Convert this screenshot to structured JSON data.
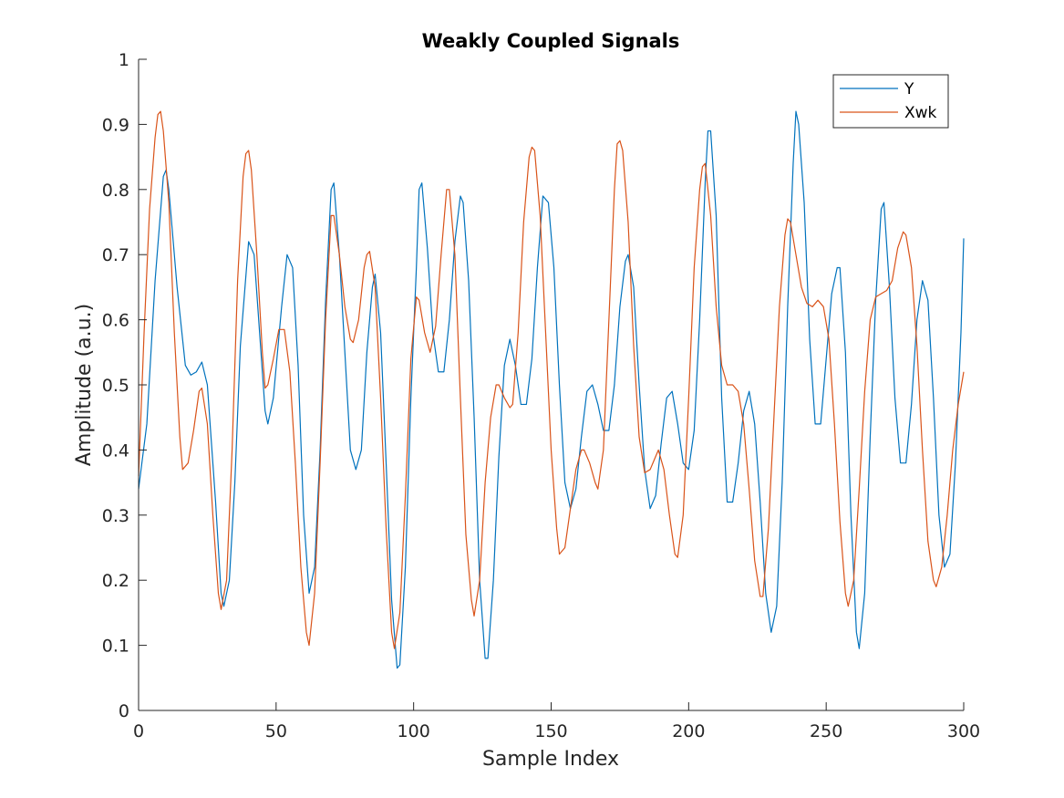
{
  "chart_data": {
    "type": "line",
    "title": "Weakly Coupled Signals",
    "xlabel": "Sample Index",
    "ylabel": "Amplitude (a.u.)",
    "xlim": [
      0,
      300
    ],
    "ylim": [
      0,
      1
    ],
    "xticks": [
      "0",
      "50",
      "100",
      "150",
      "200",
      "250",
      "300"
    ],
    "yticks": [
      "0",
      "0.1",
      "0.2",
      "0.3",
      "0.4",
      "0.5",
      "0.6",
      "0.7",
      "0.8",
      "0.9",
      "1"
    ],
    "grid": false,
    "legend_position": "top-right",
    "series": [
      {
        "name": "Y",
        "color": "#0072BD",
        "points": [
          [
            0,
            0.34
          ],
          [
            3,
            0.44
          ],
          [
            6,
            0.66
          ],
          [
            9,
            0.82
          ],
          [
            10,
            0.83
          ],
          [
            11,
            0.8
          ],
          [
            14,
            0.65
          ],
          [
            17,
            0.53
          ],
          [
            19,
            0.515
          ],
          [
            21,
            0.52
          ],
          [
            23,
            0.535
          ],
          [
            25,
            0.5
          ],
          [
            28,
            0.32
          ],
          [
            30,
            0.18
          ],
          [
            31,
            0.16
          ],
          [
            33,
            0.2
          ],
          [
            35,
            0.35
          ],
          [
            37,
            0.56
          ],
          [
            40,
            0.72
          ],
          [
            42,
            0.7
          ],
          [
            44,
            0.58
          ],
          [
            46,
            0.46
          ],
          [
            47,
            0.44
          ],
          [
            49,
            0.48
          ],
          [
            52,
            0.62
          ],
          [
            54,
            0.7
          ],
          [
            56,
            0.68
          ],
          [
            58,
            0.53
          ],
          [
            60,
            0.3
          ],
          [
            62,
            0.18
          ],
          [
            64,
            0.22
          ],
          [
            66,
            0.4
          ],
          [
            68,
            0.63
          ],
          [
            70,
            0.8
          ],
          [
            71,
            0.81
          ],
          [
            73,
            0.7
          ],
          [
            75,
            0.55
          ],
          [
            77,
            0.4
          ],
          [
            79,
            0.37
          ],
          [
            81,
            0.4
          ],
          [
            83,
            0.55
          ],
          [
            85,
            0.65
          ],
          [
            86,
            0.67
          ],
          [
            88,
            0.58
          ],
          [
            90,
            0.38
          ],
          [
            92,
            0.17
          ],
          [
            94,
            0.065
          ],
          [
            95,
            0.07
          ],
          [
            97,
            0.22
          ],
          [
            99,
            0.48
          ],
          [
            101,
            0.68
          ],
          [
            102,
            0.8
          ],
          [
            103,
            0.81
          ],
          [
            105,
            0.71
          ],
          [
            107,
            0.58
          ],
          [
            109,
            0.52
          ],
          [
            111,
            0.52
          ],
          [
            113,
            0.6
          ],
          [
            115,
            0.72
          ],
          [
            117,
            0.79
          ],
          [
            118,
            0.78
          ],
          [
            120,
            0.66
          ],
          [
            122,
            0.45
          ],
          [
            124,
            0.2
          ],
          [
            126,
            0.08
          ],
          [
            127,
            0.08
          ],
          [
            129,
            0.2
          ],
          [
            131,
            0.39
          ],
          [
            133,
            0.53
          ],
          [
            135,
            0.57
          ],
          [
            137,
            0.53
          ],
          [
            139,
            0.47
          ],
          [
            141,
            0.47
          ],
          [
            143,
            0.54
          ],
          [
            145,
            0.68
          ],
          [
            147,
            0.79
          ],
          [
            149,
            0.78
          ],
          [
            151,
            0.68
          ],
          [
            153,
            0.5
          ],
          [
            155,
            0.35
          ],
          [
            157,
            0.31
          ],
          [
            159,
            0.34
          ],
          [
            161,
            0.42
          ],
          [
            163,
            0.49
          ],
          [
            165,
            0.5
          ],
          [
            167,
            0.47
          ],
          [
            169,
            0.43
          ],
          [
            171,
            0.43
          ],
          [
            173,
            0.5
          ],
          [
            175,
            0.62
          ],
          [
            177,
            0.69
          ],
          [
            178,
            0.7
          ],
          [
            180,
            0.65
          ],
          [
            182,
            0.5
          ],
          [
            184,
            0.37
          ],
          [
            186,
            0.31
          ],
          [
            188,
            0.33
          ],
          [
            190,
            0.41
          ],
          [
            192,
            0.48
          ],
          [
            194,
            0.49
          ],
          [
            196,
            0.44
          ],
          [
            198,
            0.38
          ],
          [
            200,
            0.37
          ],
          [
            202,
            0.43
          ],
          [
            204,
            0.6
          ],
          [
            206,
            0.81
          ],
          [
            207,
            0.89
          ],
          [
            208,
            0.89
          ],
          [
            210,
            0.76
          ],
          [
            212,
            0.48
          ],
          [
            214,
            0.32
          ],
          [
            216,
            0.32
          ],
          [
            218,
            0.38
          ],
          [
            220,
            0.46
          ],
          [
            222,
            0.49
          ],
          [
            224,
            0.44
          ],
          [
            226,
            0.32
          ],
          [
            228,
            0.18
          ],
          [
            230,
            0.12
          ],
          [
            232,
            0.16
          ],
          [
            234,
            0.35
          ],
          [
            236,
            0.62
          ],
          [
            238,
            0.84
          ],
          [
            239,
            0.92
          ],
          [
            240,
            0.9
          ],
          [
            242,
            0.78
          ],
          [
            244,
            0.57
          ],
          [
            246,
            0.44
          ],
          [
            248,
            0.44
          ],
          [
            250,
            0.54
          ],
          [
            252,
            0.64
          ],
          [
            254,
            0.68
          ],
          [
            255,
            0.68
          ],
          [
            257,
            0.55
          ],
          [
            259,
            0.3
          ],
          [
            261,
            0.12
          ],
          [
            262,
            0.095
          ],
          [
            264,
            0.18
          ],
          [
            266,
            0.42
          ],
          [
            268,
            0.63
          ],
          [
            270,
            0.77
          ],
          [
            271,
            0.78
          ],
          [
            273,
            0.65
          ],
          [
            275,
            0.48
          ],
          [
            277,
            0.38
          ],
          [
            279,
            0.38
          ],
          [
            281,
            0.47
          ],
          [
            283,
            0.6
          ],
          [
            285,
            0.66
          ],
          [
            287,
            0.63
          ],
          [
            289,
            0.48
          ],
          [
            291,
            0.3
          ],
          [
            293,
            0.22
          ],
          [
            295,
            0.24
          ],
          [
            297,
            0.38
          ],
          [
            299,
            0.58
          ],
          [
            300,
            0.725
          ]
        ]
      },
      {
        "name": "Xwk",
        "color": "#D95319",
        "points": [
          [
            0,
            0.36
          ],
          [
            2,
            0.58
          ],
          [
            4,
            0.77
          ],
          [
            6,
            0.88
          ],
          [
            7,
            0.915
          ],
          [
            8,
            0.92
          ],
          [
            9,
            0.89
          ],
          [
            11,
            0.78
          ],
          [
            13,
            0.58
          ],
          [
            15,
            0.42
          ],
          [
            16,
            0.37
          ],
          [
            18,
            0.38
          ],
          [
            20,
            0.43
          ],
          [
            22,
            0.49
          ],
          [
            23,
            0.495
          ],
          [
            25,
            0.44
          ],
          [
            27,
            0.3
          ],
          [
            29,
            0.18
          ],
          [
            30,
            0.155
          ],
          [
            32,
            0.2
          ],
          [
            34,
            0.4
          ],
          [
            36,
            0.66
          ],
          [
            38,
            0.82
          ],
          [
            39,
            0.855
          ],
          [
            40,
            0.86
          ],
          [
            41,
            0.83
          ],
          [
            43,
            0.7
          ],
          [
            45,
            0.55
          ],
          [
            46,
            0.495
          ],
          [
            47,
            0.5
          ],
          [
            49,
            0.54
          ],
          [
            51,
            0.585
          ],
          [
            53,
            0.585
          ],
          [
            55,
            0.52
          ],
          [
            57,
            0.38
          ],
          [
            59,
            0.22
          ],
          [
            61,
            0.12
          ],
          [
            62,
            0.1
          ],
          [
            64,
            0.18
          ],
          [
            66,
            0.38
          ],
          [
            68,
            0.6
          ],
          [
            70,
            0.76
          ],
          [
            71,
            0.76
          ],
          [
            73,
            0.7
          ],
          [
            75,
            0.62
          ],
          [
            77,
            0.57
          ],
          [
            78,
            0.565
          ],
          [
            80,
            0.6
          ],
          [
            82,
            0.68
          ],
          [
            83,
            0.7
          ],
          [
            84,
            0.705
          ],
          [
            86,
            0.65
          ],
          [
            88,
            0.48
          ],
          [
            90,
            0.28
          ],
          [
            92,
            0.12
          ],
          [
            93,
            0.095
          ],
          [
            95,
            0.15
          ],
          [
            97,
            0.33
          ],
          [
            99,
            0.54
          ],
          [
            101,
            0.635
          ],
          [
            102,
            0.63
          ],
          [
            104,
            0.58
          ],
          [
            106,
            0.55
          ],
          [
            108,
            0.59
          ],
          [
            110,
            0.7
          ],
          [
            112,
            0.8
          ],
          [
            113,
            0.8
          ],
          [
            115,
            0.7
          ],
          [
            117,
            0.48
          ],
          [
            119,
            0.27
          ],
          [
            121,
            0.17
          ],
          [
            122,
            0.145
          ],
          [
            124,
            0.2
          ],
          [
            126,
            0.35
          ],
          [
            128,
            0.45
          ],
          [
            130,
            0.5
          ],
          [
            131,
            0.5
          ],
          [
            133,
            0.48
          ],
          [
            135,
            0.465
          ],
          [
            136,
            0.47
          ],
          [
            138,
            0.58
          ],
          [
            140,
            0.75
          ],
          [
            142,
            0.85
          ],
          [
            143,
            0.865
          ],
          [
            144,
            0.86
          ],
          [
            146,
            0.76
          ],
          [
            148,
            0.58
          ],
          [
            150,
            0.4
          ],
          [
            152,
            0.28
          ],
          [
            153,
            0.24
          ],
          [
            155,
            0.25
          ],
          [
            157,
            0.31
          ],
          [
            159,
            0.37
          ],
          [
            161,
            0.4
          ],
          [
            162,
            0.4
          ],
          [
            164,
            0.38
          ],
          [
            166,
            0.35
          ],
          [
            167,
            0.34
          ],
          [
            169,
            0.4
          ],
          [
            171,
            0.6
          ],
          [
            173,
            0.8
          ],
          [
            174,
            0.87
          ],
          [
            175,
            0.875
          ],
          [
            176,
            0.86
          ],
          [
            178,
            0.75
          ],
          [
            180,
            0.56
          ],
          [
            182,
            0.42
          ],
          [
            184,
            0.365
          ],
          [
            186,
            0.37
          ],
          [
            188,
            0.39
          ],
          [
            189,
            0.4
          ],
          [
            191,
            0.37
          ],
          [
            193,
            0.3
          ],
          [
            195,
            0.24
          ],
          [
            196,
            0.235
          ],
          [
            198,
            0.3
          ],
          [
            200,
            0.48
          ],
          [
            202,
            0.68
          ],
          [
            204,
            0.8
          ],
          [
            205,
            0.835
          ],
          [
            206,
            0.84
          ],
          [
            208,
            0.76
          ],
          [
            210,
            0.62
          ],
          [
            212,
            0.53
          ],
          [
            214,
            0.5
          ],
          [
            216,
            0.5
          ],
          [
            218,
            0.49
          ],
          [
            220,
            0.44
          ],
          [
            222,
            0.34
          ],
          [
            224,
            0.23
          ],
          [
            226,
            0.175
          ],
          [
            227,
            0.175
          ],
          [
            229,
            0.28
          ],
          [
            231,
            0.45
          ],
          [
            233,
            0.62
          ],
          [
            235,
            0.73
          ],
          [
            236,
            0.755
          ],
          [
            237,
            0.75
          ],
          [
            239,
            0.7
          ],
          [
            241,
            0.65
          ],
          [
            243,
            0.625
          ],
          [
            245,
            0.62
          ],
          [
            247,
            0.63
          ],
          [
            249,
            0.62
          ],
          [
            251,
            0.57
          ],
          [
            253,
            0.44
          ],
          [
            255,
            0.29
          ],
          [
            257,
            0.18
          ],
          [
            258,
            0.16
          ],
          [
            260,
            0.2
          ],
          [
            262,
            0.34
          ],
          [
            264,
            0.49
          ],
          [
            266,
            0.6
          ],
          [
            268,
            0.635
          ],
          [
            270,
            0.64
          ],
          [
            272,
            0.645
          ],
          [
            274,
            0.66
          ],
          [
            276,
            0.71
          ],
          [
            278,
            0.735
          ],
          [
            279,
            0.73
          ],
          [
            281,
            0.68
          ],
          [
            283,
            0.56
          ],
          [
            285,
            0.4
          ],
          [
            287,
            0.26
          ],
          [
            289,
            0.2
          ],
          [
            290,
            0.19
          ],
          [
            292,
            0.22
          ],
          [
            294,
            0.3
          ],
          [
            296,
            0.4
          ],
          [
            298,
            0.47
          ],
          [
            300,
            0.52
          ]
        ]
      }
    ]
  }
}
